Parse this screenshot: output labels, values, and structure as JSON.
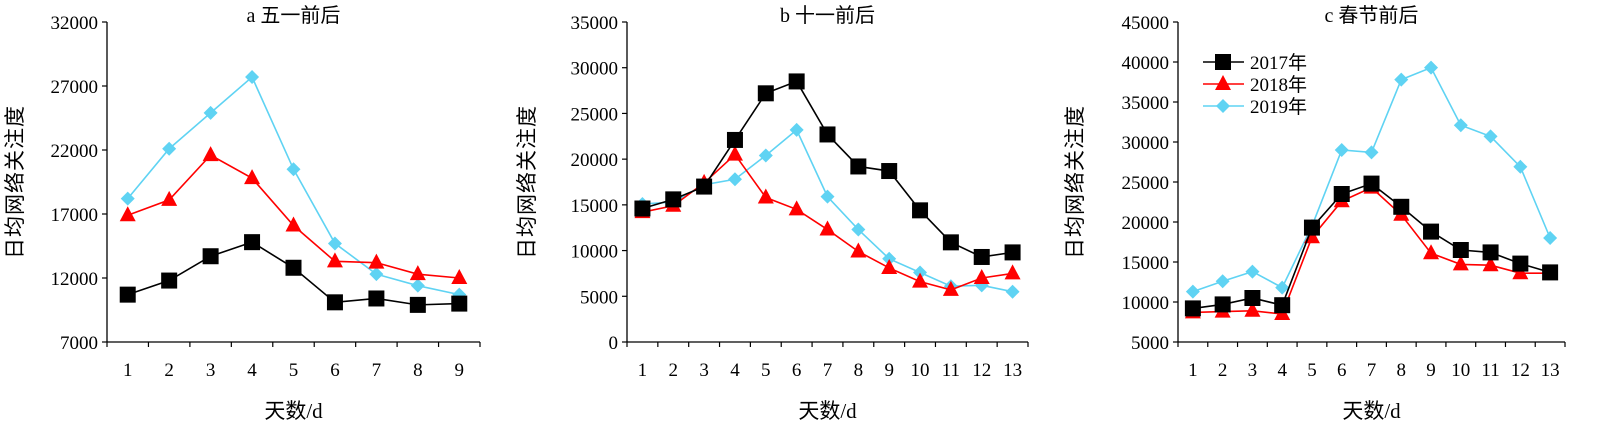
{
  "colors": {
    "2017": "#000000",
    "2018": "#ff0000",
    "2019": "#5fd3f3"
  },
  "legend": {
    "entries": [
      "2017年",
      "2018年",
      "2019年"
    ]
  },
  "chart_data": [
    {
      "type": "line",
      "title": "a 五一前后",
      "xlabel": "天数/d",
      "ylabel": "日均网络关注度",
      "ylim": [
        7000,
        32000
      ],
      "yticks": [
        "32000",
        "27000",
        "22000",
        "17000",
        "12000",
        "7000"
      ],
      "categories": [
        "1",
        "2",
        "3",
        "4",
        "5",
        "6",
        "7",
        "8",
        "9"
      ],
      "series": [
        {
          "name": "2017年",
          "marker": "square",
          "values": [
            10700,
            11800,
            13700,
            14800,
            12800,
            10100,
            10400,
            9900,
            10000
          ]
        },
        {
          "name": "2018年",
          "marker": "triangle",
          "values": [
            16900,
            18100,
            21600,
            19800,
            16100,
            13300,
            13200,
            12300,
            12000
          ]
        },
        {
          "name": "2019年",
          "marker": "diamond",
          "values": [
            18200,
            22100,
            24900,
            27700,
            20500,
            14700,
            12300,
            11400,
            10700
          ]
        }
      ]
    },
    {
      "type": "line",
      "title": "b 十一前后",
      "xlabel": "天数/d",
      "ylabel": "日均网络关注度",
      "ylim": [
        0,
        35000
      ],
      "yticks": [
        "35000",
        "30000",
        "25000",
        "20000",
        "15000",
        "10000",
        "5000",
        "0"
      ],
      "categories": [
        "1",
        "2",
        "3",
        "4",
        "5",
        "6",
        "7",
        "8",
        "9",
        "10",
        "11",
        "12",
        "13"
      ],
      "series": [
        {
          "name": "2017年",
          "marker": "square",
          "values": [
            14600,
            15600,
            17000,
            22100,
            27200,
            28500,
            22700,
            19200,
            18700,
            14400,
            10900,
            9300,
            9800
          ]
        },
        {
          "name": "2018年",
          "marker": "triangle",
          "values": [
            14200,
            14900,
            17400,
            20500,
            15800,
            14500,
            12300,
            9900,
            8100,
            6600,
            5700,
            7000,
            7500
          ]
        },
        {
          "name": "2019年",
          "marker": "diamond",
          "values": [
            15100,
            15300,
            17200,
            17800,
            20400,
            23200,
            15900,
            12300,
            9100,
            7600,
            6100,
            6200,
            5500
          ]
        }
      ]
    },
    {
      "type": "line",
      "title": "c 春节前后",
      "xlabel": "天数/d",
      "ylabel": "日均网络关注度",
      "ylim": [
        5000,
        45000
      ],
      "yticks": [
        "45000",
        "40000",
        "35000",
        "30000",
        "25000",
        "20000",
        "15000",
        "10000",
        "5000"
      ],
      "categories": [
        "1",
        "2",
        "3",
        "4",
        "5",
        "6",
        "7",
        "8",
        "9",
        "10",
        "11",
        "12",
        "13"
      ],
      "series": [
        {
          "name": "2017年",
          "marker": "square",
          "values": [
            9200,
            9700,
            10500,
            9600,
            19300,
            23500,
            24800,
            21900,
            18800,
            16500,
            16200,
            14800,
            13700
          ]
        },
        {
          "name": "2018年",
          "marker": "triangle",
          "values": [
            8700,
            8800,
            8900,
            8500,
            18100,
            22600,
            24300,
            20900,
            16100,
            14700,
            14600,
            13600,
            13600
          ]
        },
        {
          "name": "2019年",
          "marker": "diamond",
          "values": [
            11300,
            12600,
            13800,
            11800,
            19500,
            29000,
            28700,
            37800,
            39300,
            32100,
            30700,
            26900,
            18000
          ]
        }
      ]
    }
  ]
}
